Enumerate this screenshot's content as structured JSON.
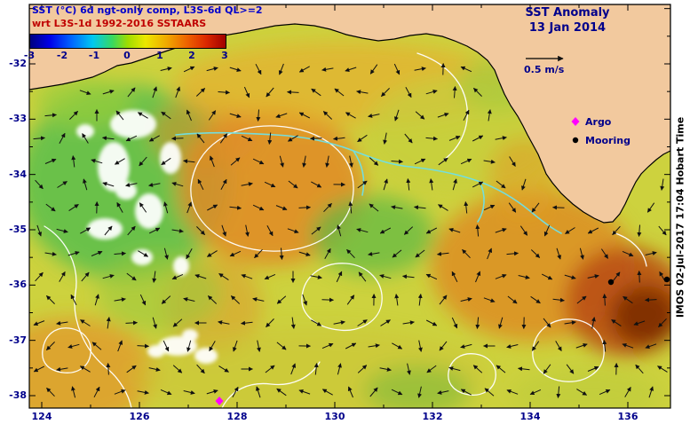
{
  "header": {
    "line1": "SST (°C) 6d ngt-only comp, L3S-6d QL>=2",
    "line2": "wrt L3S-1d 1992-2016 SSTAARS",
    "right_title": "SST Anomaly",
    "date": "13 Jan 2014",
    "line1_color": "#0000cc",
    "line2_color": "#cc0000"
  },
  "colorbar": {
    "tick_labels": [
      "-3",
      "-2",
      "-1",
      "0",
      "1",
      "2",
      "3"
    ],
    "range": [
      -3,
      3
    ],
    "units": "°C",
    "colors": [
      "#00007f",
      "#0000e8",
      "#0064ff",
      "#00c8f0",
      "#38d860",
      "#a0dc00",
      "#ece800",
      "#f0a800",
      "#ee6400",
      "#dc2800",
      "#a00000"
    ]
  },
  "vector_key": {
    "label": "0.5 m/s"
  },
  "legend": {
    "argo_label": "Argo",
    "mooring_label": "Mooring",
    "argo_color": "#ff00ff",
    "mooring_color": "#000000"
  },
  "watermark": "IMOS 02-Jul-2017 17:04 Hobart Time",
  "axes": {
    "lat_ticks": [
      "-32",
      "-33",
      "-34",
      "-35",
      "-36",
      "-37",
      "-38"
    ],
    "lon_ticks": [
      "124",
      "126",
      "128",
      "130",
      "132",
      "134",
      "136"
    ]
  },
  "chart_data": {
    "type": "heatmap",
    "title": "SST Anomaly",
    "date": "13 Jan 2014",
    "composite": "SST (°C) 6d ngt-only comp, L3S-6d QL>=2",
    "reference": "wrt L3S-1d 1992-2016 SSTAARS",
    "lon_ticks": [
      124,
      126,
      128,
      130,
      132,
      134,
      136
    ],
    "lat_ticks": [
      -32,
      -33,
      -34,
      -35,
      -36,
      -37,
      -38
    ],
    "lon_range": [
      123.7,
      136.9
    ],
    "lat_range": [
      -38.2,
      -30.9
    ],
    "colorbar": {
      "ticks": [
        -3,
        -2,
        -1,
        0,
        1,
        2,
        3
      ],
      "range": [
        -3,
        3
      ],
      "units": "°C"
    },
    "vector_scale_m_per_s": 0.5,
    "legend_markers": [
      {
        "label": "Argo",
        "marker": "magenta-diamond"
      },
      {
        "label": "Mooring",
        "marker": "black-dot"
      }
    ],
    "field_samples": [
      {
        "lon": 128.3,
        "lat": -34.4,
        "anomaly_c": 1.5
      },
      {
        "lon": 125.8,
        "lat": -34.8,
        "anomaly_c": -0.5
      },
      {
        "lon": 131.5,
        "lat": -35.6,
        "anomaly_c": 1.0
      },
      {
        "lon": 135.8,
        "lat": -35.9,
        "anomaly_c": 2.5
      },
      {
        "lon": 130.9,
        "lat": -36.8,
        "anomaly_c": 0.5
      },
      {
        "lon": 127.0,
        "lat": -37.5,
        "anomaly_c": 1.0
      },
      {
        "lon": 133.0,
        "lat": -33.6,
        "anomaly_c": 0.3
      }
    ],
    "watermark": "IMOS 02-Jul-2017 17:04 Hobart Time"
  }
}
